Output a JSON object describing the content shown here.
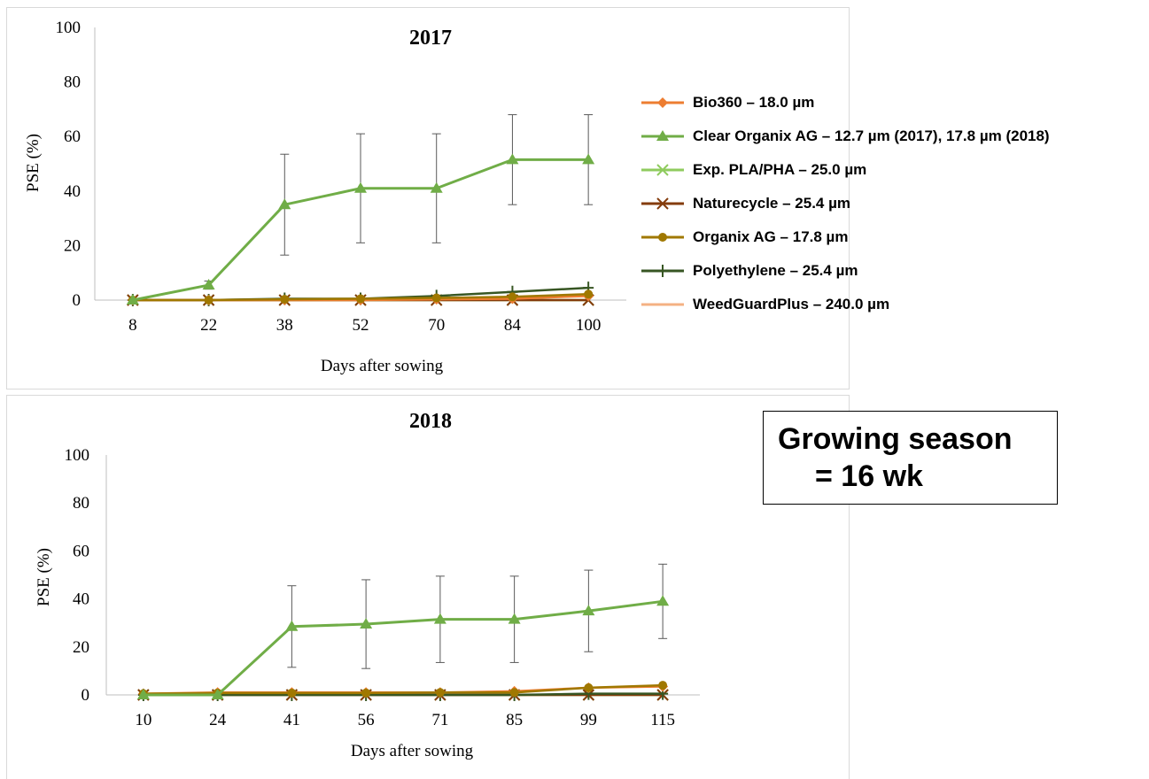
{
  "colors": {
    "bio360": "#ED7D31",
    "clear_organix": "#70AD47",
    "exp_pla_pha": "#8FCB5E",
    "naturecycle": "#843C0C",
    "organix_ag": "#A07800",
    "polyethylene": "#375623",
    "weedguard": "#F4B183",
    "axis": "#BFBFBF",
    "error_bar": "#595959"
  },
  "legend": [
    {
      "key": "bio360",
      "label": "Bio360 – 18.0 µm",
      "marker": "diamond"
    },
    {
      "key": "clear_organix",
      "label": "Clear Organix AG  – 12.7 µm (2017), 17.8 µm (2018)",
      "marker": "triangle"
    },
    {
      "key": "exp_pla_pha",
      "label": "Exp. PLA/PHA  – 25.0 µm",
      "marker": "x"
    },
    {
      "key": "naturecycle",
      "label": "Naturecycle  – 25.4 µm",
      "marker": "x"
    },
    {
      "key": "organix_ag",
      "label": "Organix AG  – 17.8 µm",
      "marker": "circle"
    },
    {
      "key": "polyethylene",
      "label": "Polyethylene  – 25.4 µm",
      "marker": "plus"
    },
    {
      "key": "weedguard",
      "label": "WeedGuardPlus  – 240.0 µm",
      "marker": "none"
    }
  ],
  "annotation": {
    "line1": "Growing season",
    "line2": "= 16 wk"
  },
  "chart_data": [
    {
      "type": "line",
      "title": "2017",
      "xlabel": "Days after sowing",
      "ylabel": "PSE (%)",
      "ylim": [
        0,
        100
      ],
      "yticks": [
        0,
        20,
        40,
        60,
        80,
        100
      ],
      "categories": [
        "8",
        "22",
        "38",
        "52",
        "70",
        "84",
        "100"
      ],
      "grid": false,
      "legend_position": "right",
      "series": [
        {
          "key": "bio360",
          "name": "Bio360 – 18.0 µm",
          "values": [
            0,
            0,
            0,
            0,
            0.3,
            0.5,
            1.5
          ]
        },
        {
          "key": "clear_organix",
          "name": "Clear Organix AG  – 12.7 µm (2017), 17.8 µm (2018)",
          "values": [
            0,
            5.5,
            35,
            41,
            41,
            51.5,
            51.5
          ],
          "error": [
            0,
            1.5,
            18.5,
            20,
            20,
            16.5,
            16.5
          ]
        },
        {
          "key": "exp_pla_pha",
          "name": "Exp. PLA/PHA  – 25.0 µm",
          "values": [
            0,
            0,
            0,
            0,
            0,
            0,
            0
          ]
        },
        {
          "key": "naturecycle",
          "name": "Naturecycle  – 25.4 µm",
          "values": [
            0,
            0,
            0,
            0,
            0,
            0,
            0
          ]
        },
        {
          "key": "organix_ag",
          "name": "Organix AG  – 17.8 µm",
          "values": [
            0,
            0,
            0.3,
            0.5,
            0.8,
            1.2,
            2.2
          ]
        },
        {
          "key": "polyethylene",
          "name": "Polyethylene  – 25.4 µm",
          "values": [
            0,
            0,
            0.5,
            0.5,
            1.5,
            3,
            4.5
          ]
        },
        {
          "key": "weedguard",
          "name": "WeedGuardPlus  – 240.0 µm",
          "values": [
            0,
            0,
            0,
            0,
            0,
            0,
            0
          ]
        }
      ]
    },
    {
      "type": "line",
      "title": "2018",
      "xlabel": "Days after sowing",
      "ylabel": "PSE (%)",
      "ylim": [
        0,
        100
      ],
      "yticks": [
        0,
        20,
        40,
        60,
        80,
        100
      ],
      "categories": [
        "10",
        "24",
        "41",
        "56",
        "71",
        "85",
        "99",
        "115"
      ],
      "grid": false,
      "series": [
        {
          "key": "bio360",
          "name": "Bio360 – 18.0 µm",
          "values": [
            0.5,
            1,
            1,
            1,
            1,
            1.5,
            3,
            3.5
          ]
        },
        {
          "key": "clear_organix",
          "name": "Clear Organix AG  – 12.7 µm (2017), 17.8 µm (2018)",
          "values": [
            0,
            0,
            28.5,
            29.5,
            31.5,
            31.5,
            35,
            39
          ],
          "error": [
            0,
            0,
            17,
            18.5,
            18,
            18,
            17,
            15.5
          ]
        },
        {
          "key": "exp_pla_pha",
          "name": "Exp. PLA/PHA  – 25.0 µm",
          "values": [
            0,
            0,
            0,
            0,
            0,
            0,
            0,
            0
          ]
        },
        {
          "key": "naturecycle",
          "name": "Naturecycle  – 25.4 µm",
          "values": [
            0,
            0,
            0,
            0,
            0,
            0,
            0,
            0
          ]
        },
        {
          "key": "organix_ag",
          "name": "Organix AG  – 17.8 µm",
          "values": [
            0.5,
            0.8,
            0.8,
            0.8,
            1,
            1,
            3,
            4
          ]
        },
        {
          "key": "polyethylene",
          "name": "Polyethylene  – 25.4 µm",
          "values": [
            0,
            0,
            0,
            0,
            0,
            0,
            0.5,
            0.5
          ]
        },
        {
          "key": "weedguard",
          "name": "WeedGuardPlus  – 240.0 µm",
          "values": [
            0,
            0,
            0,
            0,
            0,
            0,
            0,
            0
          ]
        }
      ]
    }
  ]
}
